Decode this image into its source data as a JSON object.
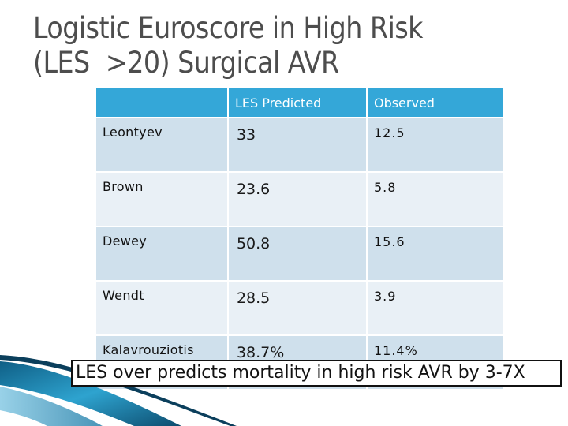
{
  "slide": {
    "title_line1": "Logistic Euroscore in High Risk",
    "title_line2": "(LES  >20) Surgical AVR",
    "footnote": "LES over predicts mortality in high risk AVR by 3-7X"
  },
  "table": {
    "headers": [
      "",
      "LES Predicted",
      "Observed"
    ],
    "rows": [
      {
        "name": "Leontyev",
        "predicted": "33",
        "observed": "12.5"
      },
      {
        "name": "Brown",
        "predicted": "23.6",
        "observed": "5.8"
      },
      {
        "name": "Dewey",
        "predicted": "50.8",
        "observed": "15.6"
      },
      {
        "name": "Wendt",
        "predicted": "28.5",
        "observed": "3.9"
      },
      {
        "name": "Kalavrouziotis",
        "predicted": "38.7%",
        "observed": "11.4%"
      }
    ]
  },
  "colors": {
    "header": "#34a7d8",
    "row_odd": "#cfe0ec",
    "row_even": "#e9f0f6",
    "title": "#4d4d4d"
  }
}
